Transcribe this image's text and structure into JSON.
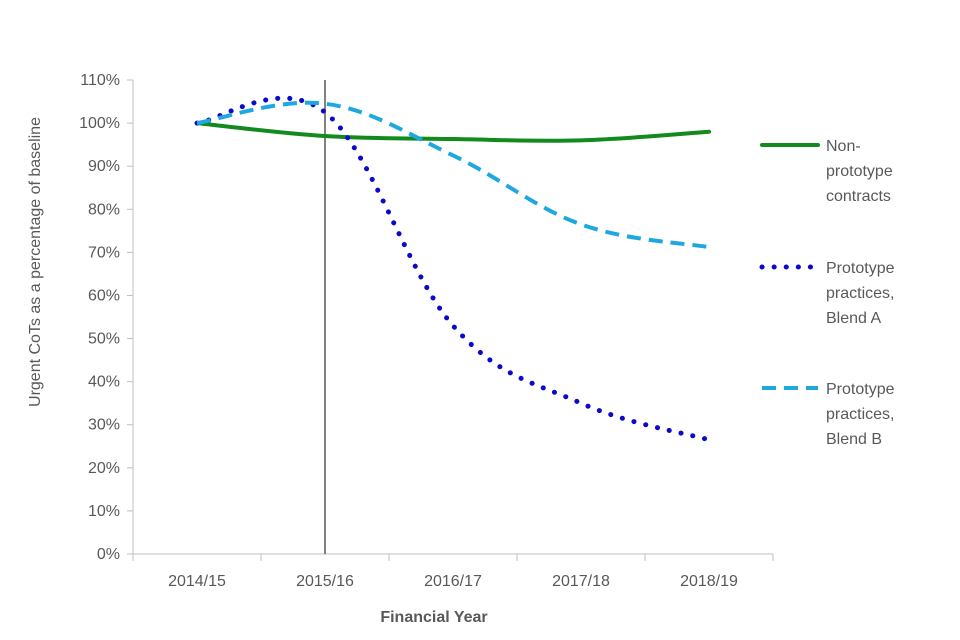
{
  "chart_data": {
    "type": "line",
    "title": "",
    "xlabel": "Financial Year",
    "ylabel": "Urgent CoTs as a percentage of baseline",
    "categories": [
      "2014/15",
      "2015/16",
      "2016/17",
      "2017/18",
      "2018/19"
    ],
    "ylim": [
      0,
      110
    ],
    "yticks": [
      0,
      10,
      20,
      30,
      40,
      50,
      60,
      70,
      80,
      90,
      100,
      110
    ],
    "ytick_labels": [
      "0%",
      "10%",
      "20%",
      "30%",
      "40%",
      "50%",
      "60%",
      "70%",
      "80%",
      "90%",
      "100%",
      "110%"
    ],
    "reference_line_x": "2015/16",
    "grid": false,
    "legend_position": "right",
    "series": [
      {
        "name": "Non-prototype contracts",
        "legend_lines": [
          "Non-",
          "prototype",
          "contracts"
        ],
        "style": "solid",
        "color": "#138A1E",
        "x": [
          "2014/15",
          "2015/16",
          "2016/17",
          "2017/18",
          "2018/19"
        ],
        "values": [
          100,
          97,
          96.3,
          96,
          98
        ]
      },
      {
        "name": "Prototype practices, Blend A",
        "legend_lines": [
          "Prototype",
          "practices,",
          "Blend A"
        ],
        "style": "dotted",
        "color": "#0A0AC8",
        "x": [
          "2014/15",
          "2015/16",
          "2016/17",
          "2017/18",
          "2018/19"
        ],
        "values": [
          100,
          102.5,
          53,
          35,
          26.5
        ]
      },
      {
        "name": "Prototype practices, Blend B",
        "legend_lines": [
          "Prototype",
          "practices,",
          "Blend B"
        ],
        "style": "dashed",
        "color": "#1FA8E0",
        "x": [
          "2014/15",
          "2015/16",
          "2016/17",
          "2017/18",
          "2018/19"
        ],
        "values": [
          100,
          104.5,
          92.5,
          76.5,
          71.2
        ]
      }
    ]
  }
}
